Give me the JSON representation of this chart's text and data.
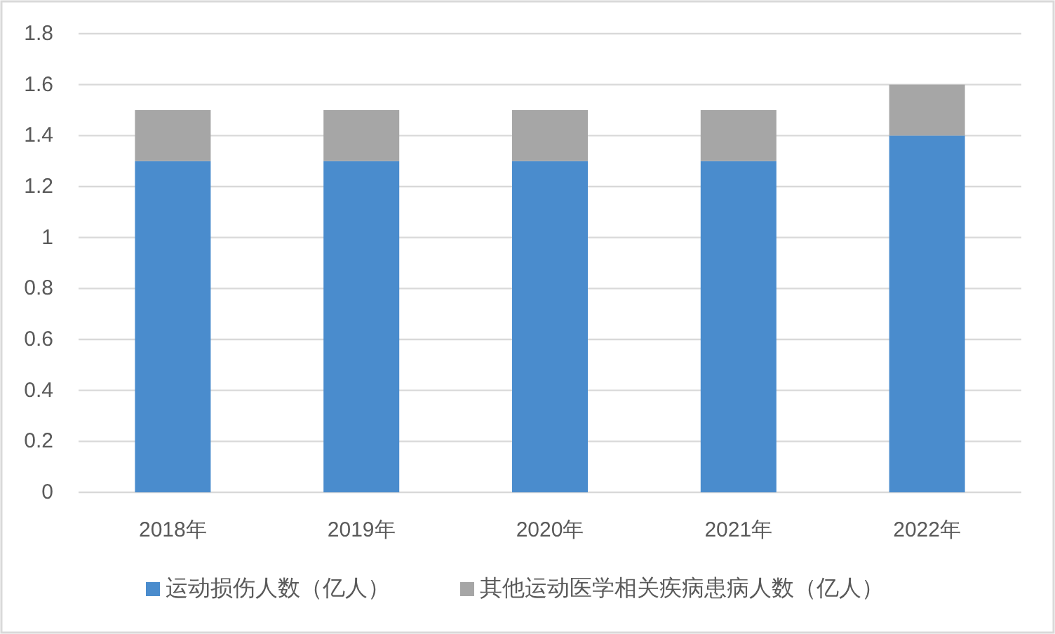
{
  "chart_data": {
    "type": "bar",
    "stacked": true,
    "categories": [
      "2018年",
      "2019年",
      "2020年",
      "2021年",
      "2022年"
    ],
    "series": [
      {
        "name": "运动损伤人数（亿人）",
        "color": "#4a8ccd",
        "values": [
          1.3,
          1.3,
          1.3,
          1.3,
          1.4
        ]
      },
      {
        "name": "其他运动医学相关疾病患病人数（亿人）",
        "color": "#a6a6a6",
        "values": [
          0.2,
          0.2,
          0.2,
          0.2,
          0.2
        ]
      }
    ],
    "ylim": [
      0,
      1.8
    ],
    "yticks": [
      0,
      0.2,
      0.4,
      0.6,
      0.8,
      1,
      1.2,
      1.4,
      1.6,
      1.8
    ],
    "grid": "y",
    "legend": "bottom"
  }
}
